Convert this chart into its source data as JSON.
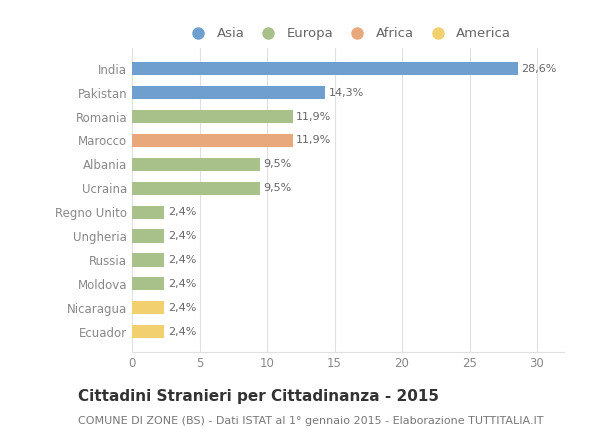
{
  "categories": [
    "India",
    "Pakistan",
    "Romania",
    "Marocco",
    "Albania",
    "Ucraina",
    "Regno Unito",
    "Ungheria",
    "Russia",
    "Moldova",
    "Nicaragua",
    "Ecuador"
  ],
  "values": [
    28.6,
    14.3,
    11.9,
    11.9,
    9.5,
    9.5,
    2.4,
    2.4,
    2.4,
    2.4,
    2.4,
    2.4
  ],
  "labels": [
    "28,6%",
    "14,3%",
    "11,9%",
    "11,9%",
    "9,5%",
    "9,5%",
    "2,4%",
    "2,4%",
    "2,4%",
    "2,4%",
    "2,4%",
    "2,4%"
  ],
  "colors": [
    "#6e9fcf",
    "#6e9fcf",
    "#a8c08a",
    "#e8a87c",
    "#a8c08a",
    "#a8c08a",
    "#a8c08a",
    "#a8c08a",
    "#a8c08a",
    "#a8c08a",
    "#f2d070",
    "#f2d070"
  ],
  "legend": [
    {
      "label": "Asia",
      "color": "#6e9fcf"
    },
    {
      "label": "Europa",
      "color": "#a8c08a"
    },
    {
      "label": "Africa",
      "color": "#e8a87c"
    },
    {
      "label": "America",
      "color": "#f2d070"
    }
  ],
  "title": "Cittadini Stranieri per Cittadinanza - 2015",
  "subtitle": "COMUNE DI ZONE (BS) - Dati ISTAT al 1° gennaio 2015 - Elaborazione TUTTITALIA.IT",
  "xlim": [
    0,
    32
  ],
  "xticks": [
    0,
    5,
    10,
    15,
    20,
    25,
    30
  ],
  "background_color": "#ffffff",
  "grid_color": "#e0e0e0",
  "bar_height": 0.55,
  "title_fontsize": 11,
  "subtitle_fontsize": 8,
  "tick_fontsize": 8.5,
  "label_fontsize": 8,
  "legend_fontsize": 9.5
}
